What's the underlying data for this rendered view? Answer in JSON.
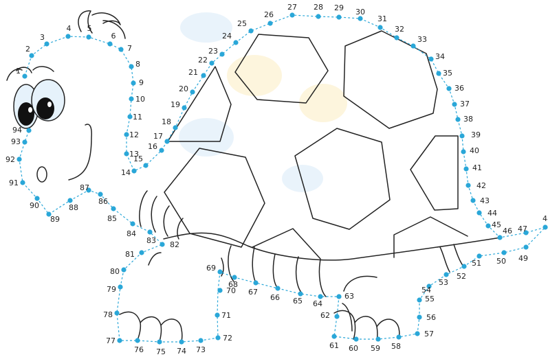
{
  "colors": {
    "dot": "#2aa7d8",
    "line": "#222222",
    "background": "#ffffff",
    "eye_white": "#e6f2fb",
    "pupil": "#111111",
    "watermark_blue": "#cfe5f7",
    "watermark_yellow": "#fbe9b5"
  },
  "puzzle": {
    "dot_labels": [
      "1",
      "2",
      "3",
      "4",
      "5",
      "6",
      "7",
      "8",
      "9",
      "10",
      "11",
      "12",
      "13",
      "14",
      "15",
      "16",
      "17",
      "18",
      "19",
      "20",
      "21",
      "22",
      "23",
      "24",
      "25",
      "26",
      "27",
      "28",
      "29",
      "30",
      "31",
      "32",
      "33",
      "34",
      "35",
      "36",
      "37",
      "38",
      "39",
      "40",
      "41",
      "42",
      "43",
      "44",
      "45",
      "46",
      "47",
      "48",
      "49",
      "50",
      "51",
      "52",
      "53",
      "54",
      "55",
      "56",
      "57",
      "58",
      "59",
      "60",
      "61",
      "62",
      "63",
      "64",
      "65",
      "66",
      "67",
      "68",
      "69",
      "70",
      "71",
      "72",
      "73",
      "74",
      "75",
      "76",
      "77",
      "78",
      "79",
      "80",
      "81",
      "82",
      "83",
      "84",
      "85",
      "86",
      "87",
      "88",
      "89",
      "90",
      "91",
      "92",
      "93",
      "94"
    ]
  }
}
